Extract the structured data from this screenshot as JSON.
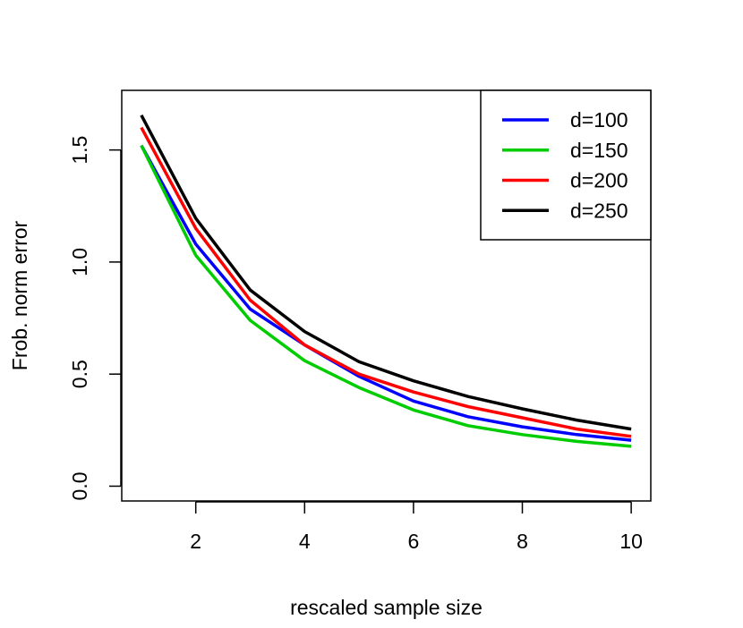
{
  "chart_data": {
    "type": "line",
    "title": "",
    "xlabel": "rescaled sample size",
    "ylabel": "Frob. norm error",
    "xlim": [
      0.64,
      10.36
    ],
    "ylim": [
      -0.066,
      1.766
    ],
    "x": [
      1,
      2,
      3,
      4,
      5,
      6,
      7,
      8,
      9,
      10
    ],
    "x_ticks": [
      2,
      4,
      6,
      8,
      10
    ],
    "x_tick_labels": [
      "2",
      "4",
      "6",
      "8",
      "10"
    ],
    "y_ticks": [
      0.0,
      0.5,
      1.0,
      1.5
    ],
    "y_tick_labels": [
      "0.0",
      "0.5",
      "1.0",
      "1.5"
    ],
    "grid": false,
    "legend_position": "top-right",
    "series": [
      {
        "name": "d=100",
        "color": "#0000ff",
        "values": [
          1.52,
          1.08,
          0.79,
          0.63,
          0.49,
          0.38,
          0.31,
          0.265,
          0.23,
          0.205
        ]
      },
      {
        "name": "d=150",
        "color": "#00cd00",
        "values": [
          1.52,
          1.03,
          0.74,
          0.56,
          0.44,
          0.34,
          0.27,
          0.23,
          0.2,
          0.178
        ]
      },
      {
        "name": "d=200",
        "color": "#ff0000",
        "values": [
          1.6,
          1.15,
          0.83,
          0.63,
          0.5,
          0.42,
          0.355,
          0.305,
          0.255,
          0.222
        ]
      },
      {
        "name": "d=250",
        "color": "#000000",
        "values": [
          1.655,
          1.195,
          0.875,
          0.69,
          0.555,
          0.47,
          0.4,
          0.345,
          0.295,
          0.255
        ]
      }
    ]
  }
}
